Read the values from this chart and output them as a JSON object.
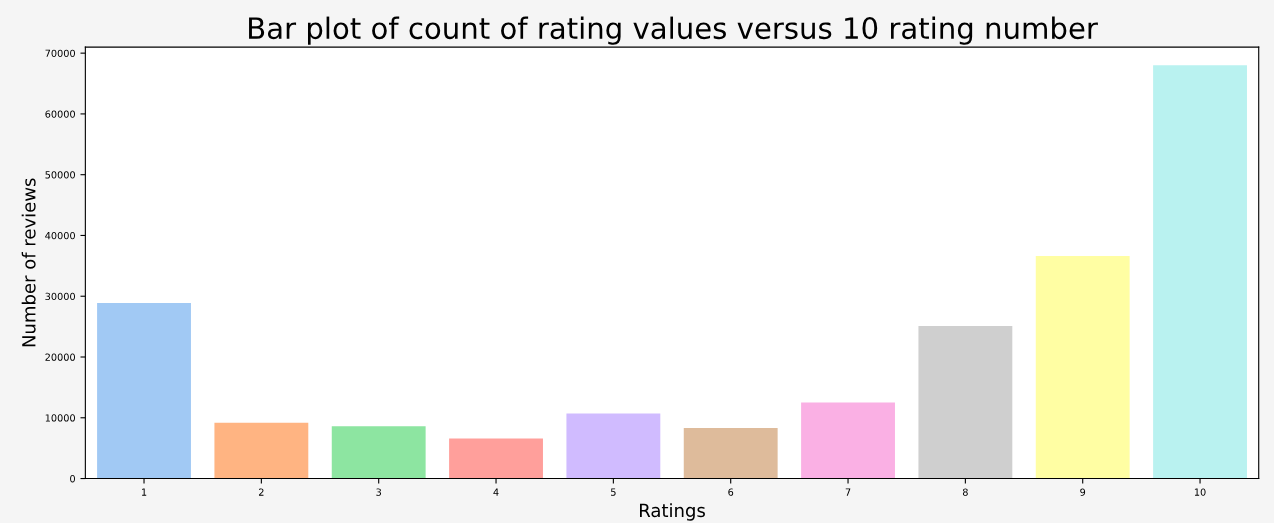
{
  "chart_data": {
    "type": "bar",
    "title": "Bar plot of count of rating values versus 10 rating number",
    "xlabel": "Ratings",
    "ylabel": "Number of reviews",
    "categories": [
      "1",
      "2",
      "3",
      "4",
      "5",
      "6",
      "7",
      "8",
      "9",
      "10"
    ],
    "values": [
      28900,
      9200,
      8600,
      6600,
      10700,
      8300,
      12500,
      25100,
      36600,
      68000
    ],
    "colors": [
      "#a1c9f4",
      "#ffb482",
      "#8de5a1",
      "#ff9f9b",
      "#d0bbff",
      "#debb9b",
      "#fab0e4",
      "#cfcfcf",
      "#fffea3",
      "#b9f2f0"
    ],
    "ylim": [
      0,
      71000
    ],
    "yticks": [
      0,
      10000,
      20000,
      30000,
      40000,
      50000,
      60000,
      70000
    ],
    "grid": false
  }
}
